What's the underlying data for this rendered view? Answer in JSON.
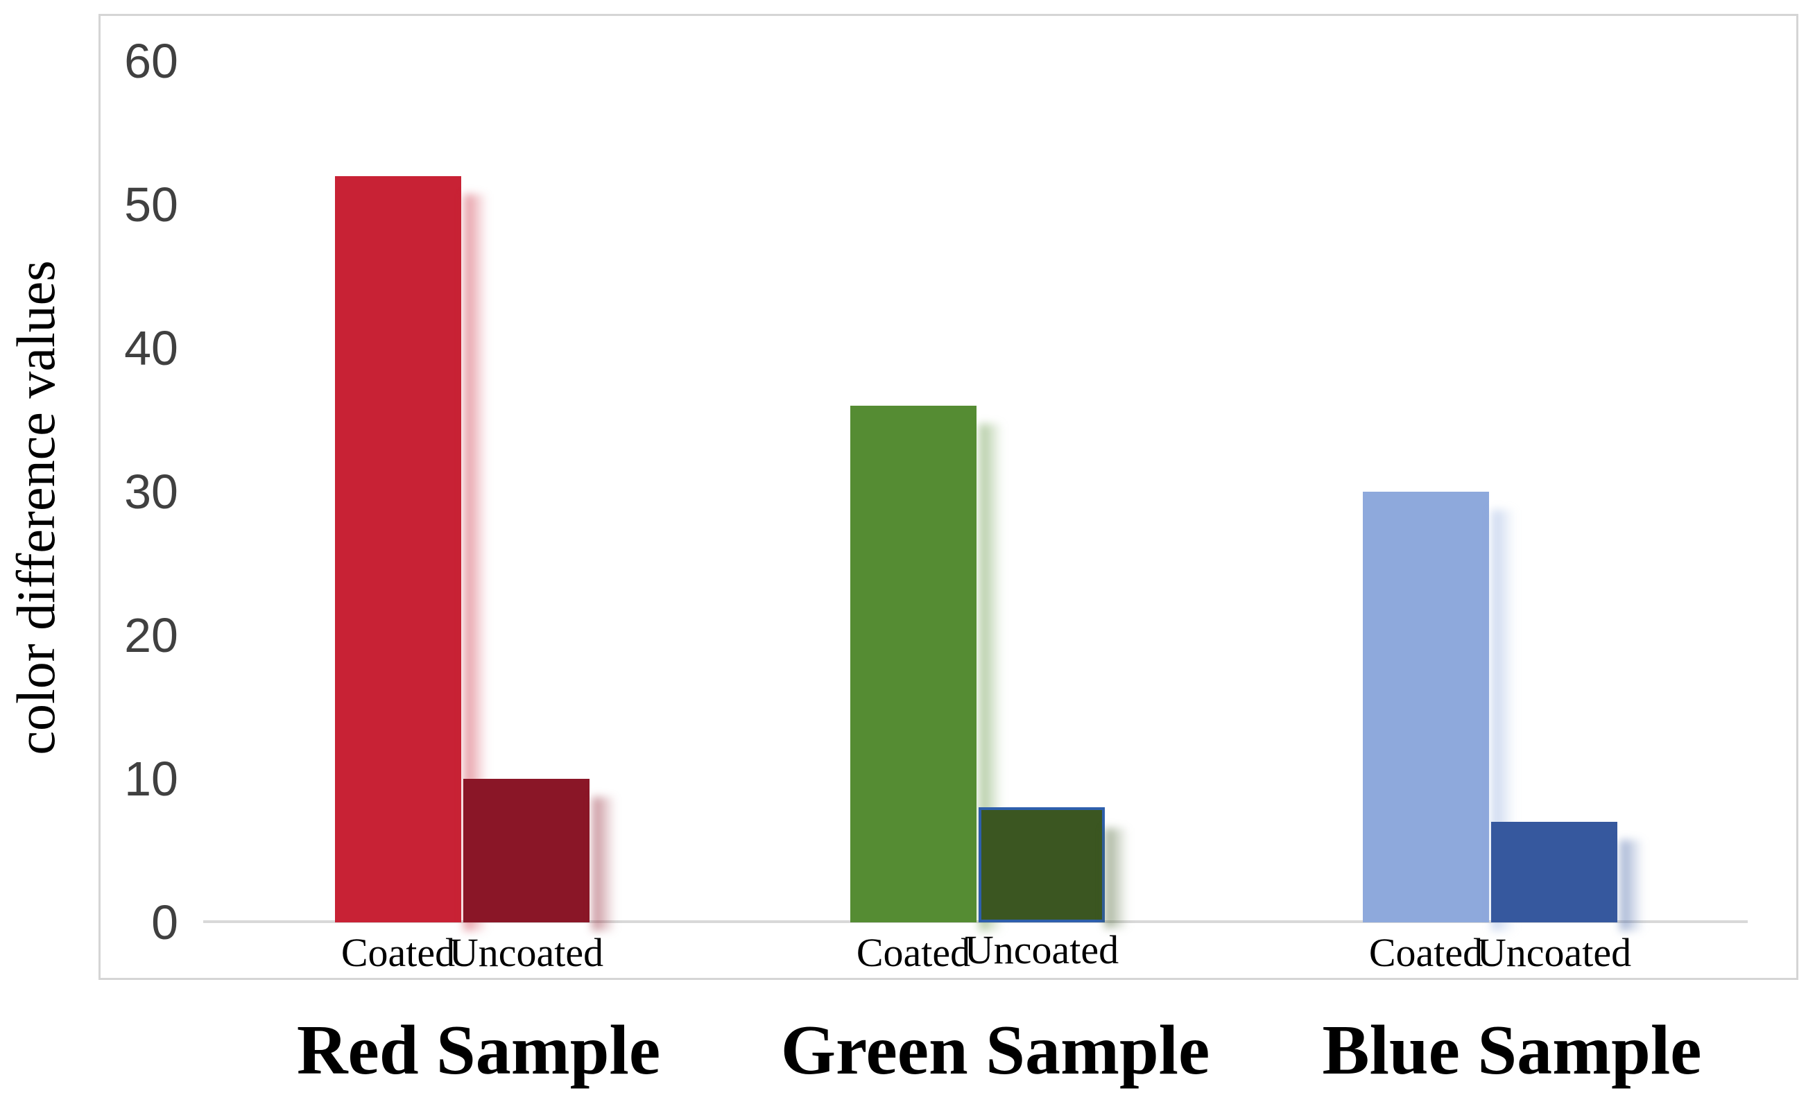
{
  "chart_data": {
    "type": "bar",
    "title": "",
    "xlabel": "",
    "ylabel": "color difference values",
    "ylim": [
      0,
      60
    ],
    "yticks": [
      0,
      10,
      20,
      30,
      40,
      50,
      60
    ],
    "grid": false,
    "legend": "none",
    "bar_labels": [
      "Coated",
      "Uncoated"
    ],
    "groups": [
      {
        "label": "Red Sample",
        "bars": [
          {
            "label": "Coated",
            "value": 52,
            "color": "#c82235"
          },
          {
            "label": "Uncoated",
            "value": 10,
            "color": "#8a1627"
          }
        ]
      },
      {
        "label": "Green Sample",
        "bars": [
          {
            "label": "Coated",
            "value": 36,
            "color": "#558c33"
          },
          {
            "label": "Uncoated",
            "value": 8,
            "color": "#3b5621",
            "border_color": "#2e5fac"
          }
        ]
      },
      {
        "label": "Blue Sample",
        "bars": [
          {
            "label": "Coated",
            "value": 30,
            "color": "#8ea9dc"
          },
          {
            "label": "Uncoated",
            "value": 7,
            "color": "#36589e"
          }
        ]
      }
    ],
    "colors": {
      "axis_line": "#d9d9d9",
      "frame_border": "#d5d5d5",
      "tick_text": "#404040",
      "label_text": "#000000"
    }
  }
}
